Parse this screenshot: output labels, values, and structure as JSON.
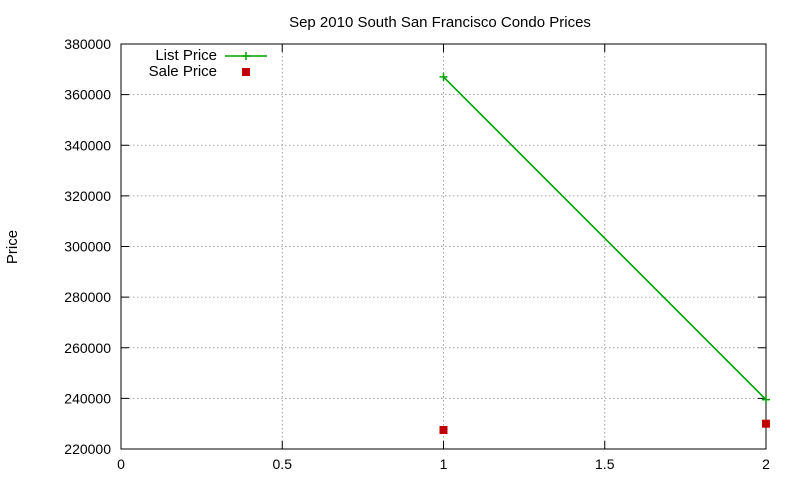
{
  "chart_data": {
    "type": "line",
    "title": "Sep 2010 South San Francisco Condo Prices",
    "xlabel": "",
    "ylabel": "Price",
    "xlim": [
      0,
      2
    ],
    "ylim": [
      220000,
      380000
    ],
    "xticks": [
      0,
      0.5,
      1,
      1.5,
      2
    ],
    "xtick_labels": [
      "0",
      "0.5",
      "1",
      "1.5",
      "2"
    ],
    "yticks": [
      220000,
      240000,
      260000,
      280000,
      300000,
      320000,
      340000,
      360000,
      380000
    ],
    "ytick_labels": [
      "220000",
      "240000",
      "260000",
      "280000",
      "300000",
      "320000",
      "340000",
      "360000",
      "380000"
    ],
    "grid": true,
    "legend_position": "top-left",
    "series": [
      {
        "name": "List Price",
        "style": "linespoints",
        "marker": "plus",
        "color": "#00a000",
        "x": [
          1,
          2
        ],
        "y": [
          367000,
          239500
        ]
      },
      {
        "name": "Sale Price",
        "style": "points",
        "marker": "square",
        "color": "#c00000",
        "x": [
          1,
          2
        ],
        "y": [
          227500,
          230000
        ]
      }
    ]
  }
}
